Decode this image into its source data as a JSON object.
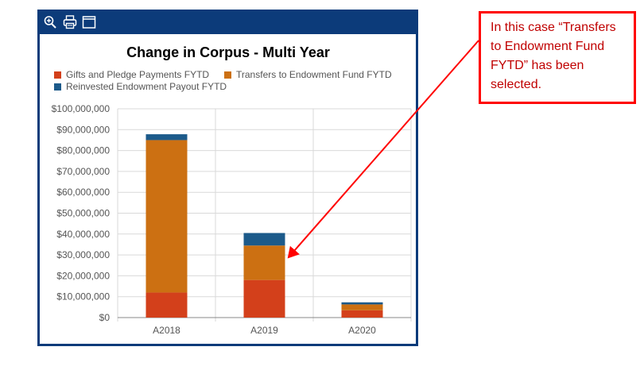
{
  "toolbar": {
    "icons": [
      "zoom-in-icon",
      "print-icon",
      "maximize-icon"
    ]
  },
  "callout": {
    "text": "In this case “Transfers to Endowment Fund FYTD” has been selected."
  },
  "colors": {
    "frame": "#0c3b7a",
    "callout_border": "#ff0000",
    "callout_text": "#c00000",
    "arrow": "#ff0000"
  },
  "chart_data": {
    "type": "bar",
    "stacked": true,
    "title": "Change in Corpus - Multi Year",
    "xlabel": "",
    "ylabel": "",
    "ylim": [
      0,
      100000000
    ],
    "yticks": [
      0,
      10000000,
      20000000,
      30000000,
      40000000,
      50000000,
      60000000,
      70000000,
      80000000,
      90000000,
      100000000
    ],
    "ytick_labels": [
      "$0",
      "$10,000,000",
      "$20,000,000",
      "$30,000,000",
      "$40,000,000",
      "$50,000,000",
      "$60,000,000",
      "$70,000,000",
      "$80,000,000",
      "$90,000,000",
      "$100,000,000"
    ],
    "categories": [
      "A2018",
      "A2019",
      "A2020"
    ],
    "legend_position": "top",
    "grid": true,
    "series": [
      {
        "name": "Gifts and Pledge Payments FYTD",
        "color": "#d3401b",
        "values": [
          12000000,
          18000000,
          3500000
        ]
      },
      {
        "name": "Transfers to Endowment Fund FYTD",
        "color": "#cc7012",
        "values": [
          73000000,
          16500000,
          2800000
        ]
      },
      {
        "name": "Reinvested Endowment Payout FYTD",
        "color": "#1c5a8a",
        "values": [
          2800000,
          6000000,
          1000000
        ]
      }
    ]
  }
}
